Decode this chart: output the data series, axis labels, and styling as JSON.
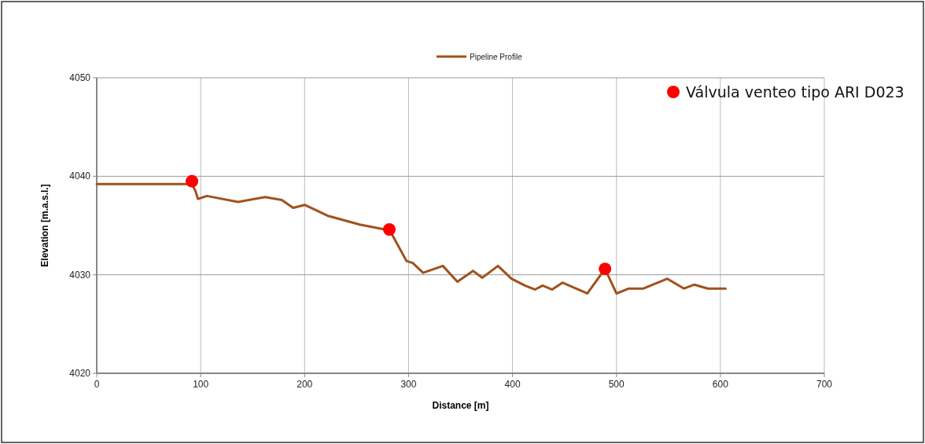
{
  "chart_data": {
    "type": "line",
    "xlabel": "Distance [m]",
    "ylabel": "Elevation [m.a.s.l.]",
    "xlim": [
      0,
      700
    ],
    "xticks": [
      0,
      100,
      200,
      300,
      400,
      500,
      600,
      700
    ],
    "ylim": [
      4020,
      4050
    ],
    "yticks": [
      4020,
      4030,
      4040,
      4050
    ],
    "grid": true,
    "legend": "top",
    "series": [
      {
        "name": "Pipeline Profile",
        "color": "#a0521c",
        "marker": "none",
        "x": [
          0,
          91.6,
          95,
          97.4,
          106,
          136,
          162,
          178,
          189,
          200,
          222,
          253,
          282,
          298,
          304,
          314,
          333,
          347,
          362,
          371,
          386,
          399,
          412,
          421.5,
          429,
          438,
          448,
          472,
          489,
          500,
          512,
          526,
          549,
          565,
          575,
          588,
          605
        ],
        "values": [
          4039.2,
          4039.2,
          4038.5,
          4037.7,
          4038,
          4037.4,
          4037.9,
          4037.6,
          4036.8,
          4037.1,
          4036,
          4035.1,
          4034.5,
          4031.4,
          4031.2,
          4030.2,
          4030.9,
          4029.3,
          4030.4,
          4029.7,
          4030.9,
          4029.6,
          4028.9,
          4028.5,
          4028.9,
          4028.5,
          4029.2,
          4028.1,
          4030.6,
          4028.1,
          4028.6,
          4028.6,
          4029.6,
          4028.6,
          4029,
          4028.6,
          4028.6
        ]
      },
      {
        "name": "Válvula venteo tipo ARI D023",
        "type": "scatter",
        "color": "#ff0000",
        "marker": "circle",
        "x": [
          91.6,
          281.5,
          489
        ],
        "values": [
          4039.5,
          4034.6,
          4030.6
        ]
      }
    ]
  }
}
